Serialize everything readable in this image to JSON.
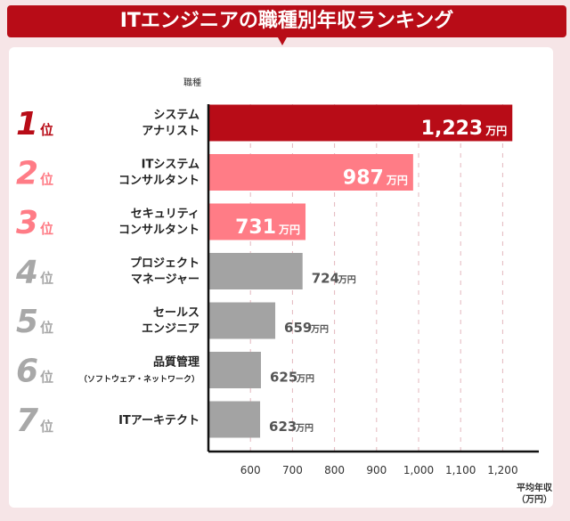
{
  "header": {
    "title": "ITエンジニアの職種別年収ランキング"
  },
  "colors": {
    "brand": "#b80c17",
    "rank1": "#b80c17",
    "rank2_3": "#ff7c86",
    "other": "#a3a3a3",
    "rank_other_text": "#a8a8a8",
    "background": "#f6e5e7"
  },
  "chart_data": {
    "type": "bar",
    "orientation": "horizontal",
    "ylabel": "職種",
    "xlabel": "平均年収\n（万円）",
    "xlabel_lines": [
      "平均年収",
      "（万円）"
    ],
    "xlim": [
      500,
      1290
    ],
    "xticks": [
      600,
      700,
      800,
      900,
      1000,
      1100,
      1200
    ],
    "xtick_labels": [
      "600",
      "700",
      "800",
      "900",
      "1,000",
      "1,100",
      "1,200"
    ],
    "grid": "vertical dashed",
    "unit": "万円",
    "items": [
      {
        "rank": "1",
        "rank_suffix": "位",
        "label": [
          "システム",
          "アナリスト"
        ],
        "value": 1223,
        "value_label": "1,223"
      },
      {
        "rank": "2",
        "rank_suffix": "位",
        "label": [
          "ITシステム",
          "コンサルタント"
        ],
        "value": 987,
        "value_label": "987"
      },
      {
        "rank": "3",
        "rank_suffix": "位",
        "label": [
          "セキュリティ",
          "コンサルタント"
        ],
        "value": 731,
        "value_label": "731"
      },
      {
        "rank": "4",
        "rank_suffix": "位",
        "label": [
          "プロジェクト",
          "マネージャー"
        ],
        "value": 724,
        "value_label": "724"
      },
      {
        "rank": "5",
        "rank_suffix": "位",
        "label": [
          "セールス",
          "エンジニア"
        ],
        "value": 659,
        "value_label": "659"
      },
      {
        "rank": "6",
        "rank_suffix": "位",
        "label": [
          "品質管理",
          "（ソフトウェア・ネットワーク）"
        ],
        "value": 625,
        "value_label": "625"
      },
      {
        "rank": "7",
        "rank_suffix": "位",
        "label": [
          "ITアーキテクト"
        ],
        "value": 623,
        "value_label": "623"
      }
    ]
  }
}
